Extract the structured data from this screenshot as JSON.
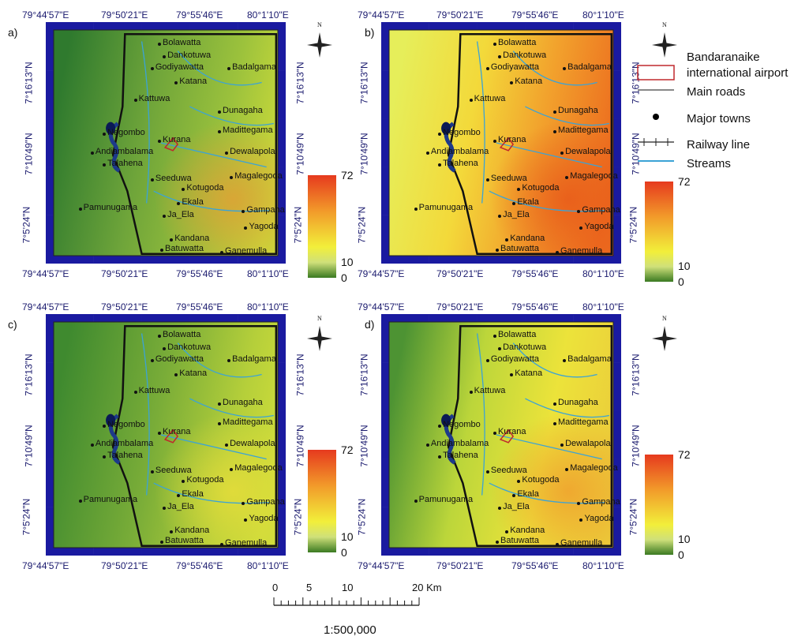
{
  "panels": [
    {
      "id": "a",
      "label": "a)",
      "variant": "low"
    },
    {
      "id": "b",
      "label": "b)",
      "variant": "high"
    },
    {
      "id": "c",
      "label": "c)",
      "variant": "low2"
    },
    {
      "id": "d",
      "label": "d)",
      "variant": "mid"
    }
  ],
  "longitudes": [
    "79°44'57\"E",
    "79°50'21\"E",
    "79°55'46\"E",
    "80°1'10\"E"
  ],
  "latitudes": [
    "7°16'13\"N",
    "7°10'49\"N",
    "7°5'24\"N"
  ],
  "towns": [
    "Bolawatta",
    "Dankotuwa",
    "Godiyawatta",
    "Badalgama",
    "Katana",
    "Kattuwa",
    "Dunagaha",
    "Negombo",
    "Madittegama",
    "Kurana",
    "Andiambalama",
    "Dewalapola",
    "Talahena",
    "Seeduwa",
    "Magalegoda",
    "Kotugoda",
    "Pamunugama",
    "Ekala",
    "Gampaha",
    "Ja_Ela",
    "Yagoda",
    "Kandana",
    "Batuwatta",
    "Ganemulla"
  ],
  "colorbar": {
    "max": "72",
    "mid": "10",
    "min": "0"
  },
  "legend": {
    "airport": "Bandaranaike international airport",
    "roads": "Main roads",
    "towns": "Major towns",
    "railway": "Railway line",
    "streams": "Streams"
  },
  "compass_letter": "N",
  "scale": {
    "ticks": [
      "0",
      "5",
      "10",
      "20 Km"
    ],
    "ratio": "1:500,000"
  },
  "colors": {
    "frame": "#1a1aa0",
    "stream": "#3ba3d6",
    "airport": "#c0282d",
    "low": "#5c9a2e",
    "mid": "#e8e93a",
    "high": "#f07a22"
  }
}
